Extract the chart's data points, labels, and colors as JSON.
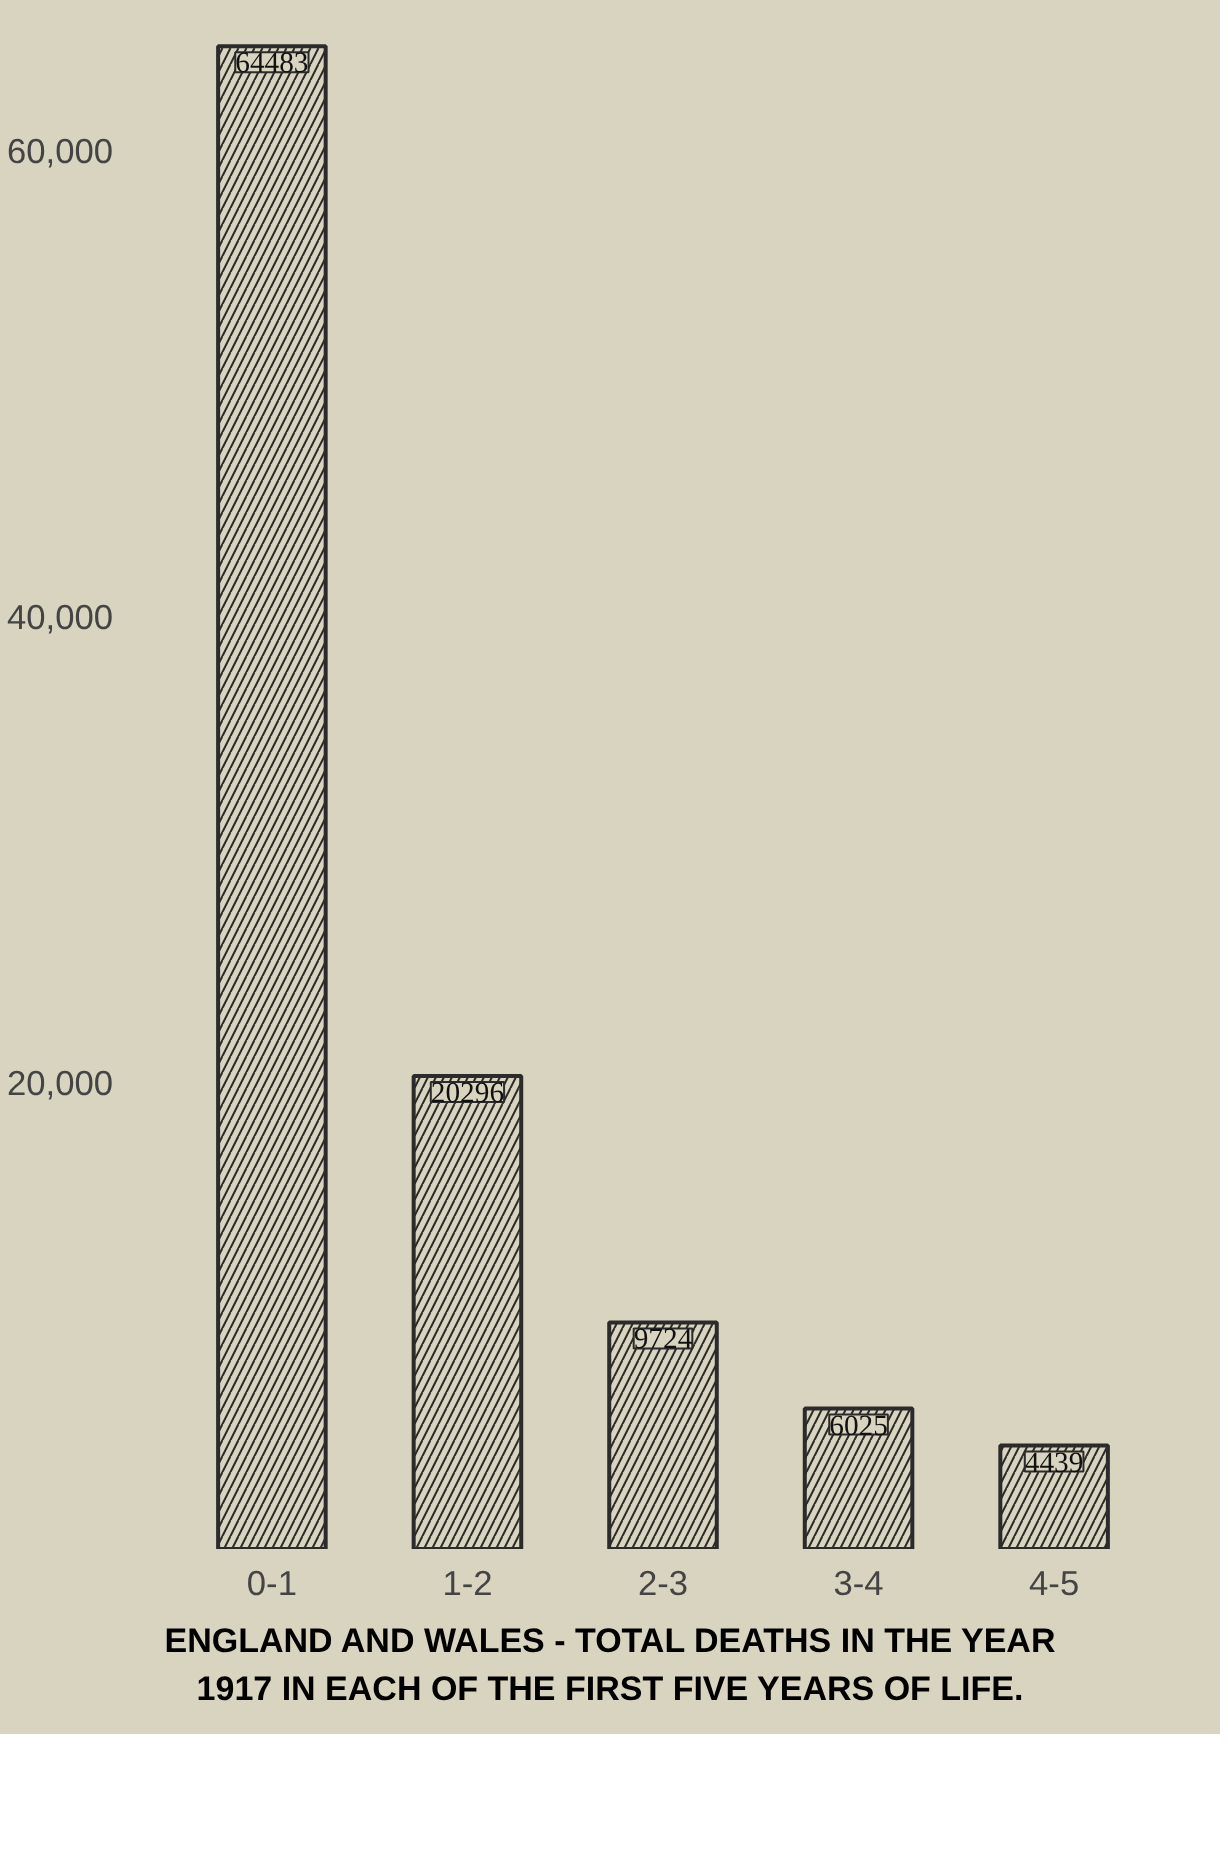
{
  "chart_data": {
    "type": "bar",
    "title": "ENGLAND AND WALES - TOTAL DEATHS IN THE YEAR 1917 IN EACH OF THE FIRST FIVE YEARS OF LIFE.",
    "categories": [
      "0-1",
      "1-2",
      "2-3",
      "3-4",
      "4-5"
    ],
    "values": [
      64483,
      20296,
      9724,
      6025,
      4439
    ],
    "color": "#2b2b2b",
    "data_labels": true,
    "grid": false,
    "ylim": [
      0,
      66000
    ],
    "yticks": [
      {
        "value": 20000,
        "label": "20,000"
      },
      {
        "value": 40000,
        "label": "40,000"
      },
      {
        "value": 60000,
        "label": "60,000"
      }
    ]
  }
}
